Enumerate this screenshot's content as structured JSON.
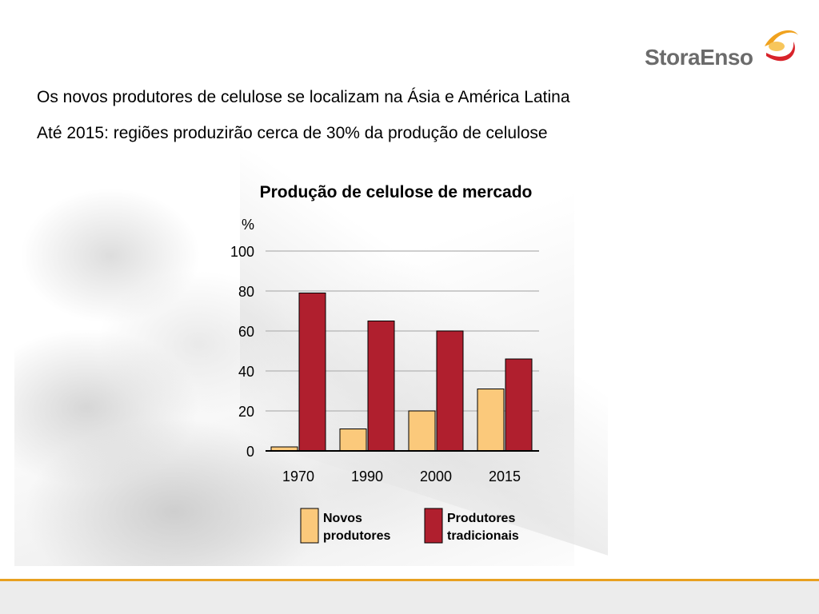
{
  "brand": {
    "logo_text": "StoraEnso"
  },
  "headings": [
    "Os novos produtores de celulose se localizam na Ásia e América Latina",
    "Até 2015: regiões produzirão cerca de 30% da produção de celulose"
  ],
  "colors": {
    "novos": "#fbc97b",
    "tradicionais": "#b01f2e",
    "footer_accent": "#e8a020"
  },
  "chart_data": {
    "type": "bar",
    "title": "Produção de celulose de mercado",
    "ylabel": "%",
    "xlabel": "",
    "ylim": [
      0,
      100
    ],
    "yticks": [
      0,
      20,
      40,
      60,
      80,
      100
    ],
    "grid": true,
    "legend_position": "bottom",
    "categories": [
      "1970",
      "1990",
      "2000",
      "2015"
    ],
    "series": [
      {
        "name": "Novos produtores",
        "legend_lines": [
          "Novos",
          "produtores"
        ],
        "values": [
          2,
          11,
          20,
          31
        ]
      },
      {
        "name": "Produtores tradicionais",
        "legend_lines": [
          "Produtores",
          "tradicionais"
        ],
        "values": [
          79,
          65,
          60,
          46
        ]
      }
    ]
  }
}
